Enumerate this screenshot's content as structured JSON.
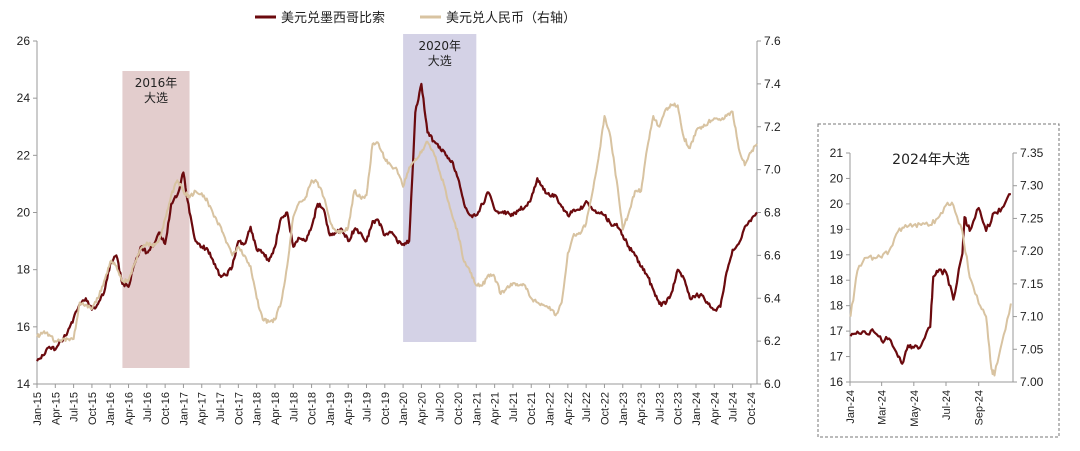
{
  "legend": [
    {
      "label": "美元兑墨西哥比索",
      "color": "#6b0a0e"
    },
    {
      "label": "美元兑人民币（右轴）",
      "color": "#d8c3a1"
    }
  ],
  "colors": {
    "mxn": "#6b0a0e",
    "cny": "#d8c3a1",
    "band_2016": "#dcc0c0",
    "band_2020": "#c9c7e0"
  },
  "chart_data": [
    {
      "type": "line",
      "xlim": [
        "2015-01",
        "2024-11"
      ],
      "y_left_lim": [
        14,
        26
      ],
      "y_left_ticks": [
        "14",
        "16",
        "18",
        "20",
        "22",
        "24",
        "26"
      ],
      "y_right_lim": [
        6.0,
        7.6
      ],
      "y_right_ticks": [
        "6.0",
        "6.2",
        "6.4",
        "6.6",
        "6.8",
        "7.0",
        "7.2",
        "7.4",
        "7.6"
      ],
      "x_ticks": [
        "Jan-15",
        "Apr-15",
        "Jul-15",
        "Oct-15",
        "Jan-16",
        "Apr-16",
        "Jul-16",
        "Oct-16",
        "Jan-17",
        "Apr-17",
        "Jul-17",
        "Oct-17",
        "Jan-18",
        "Apr-18",
        "Jul-18",
        "Oct-18",
        "Jan-19",
        "Apr-19",
        "Jul-19",
        "Oct-19",
        "Jan-20",
        "Apr-20",
        "Jul-20",
        "Oct-20",
        "Jan-21",
        "Apr-21",
        "Jul-21",
        "Oct-21",
        "Jan-22",
        "Apr-22",
        "Jul-22",
        "Oct-22",
        "Jan-23",
        "Apr-23",
        "Jul-23",
        "Oct-23",
        "Jan-24",
        "Apr-24",
        "Jul-24",
        "Oct-24"
      ],
      "annotations": [
        {
          "text": [
            "2016年",
            "大选"
          ],
          "start": "2016-03",
          "end": "2017-02"
        },
        {
          "text": [
            "2020年",
            "大选"
          ],
          "start": "2020-01",
          "end": "2021-01"
        }
      ],
      "series": [
        {
          "name": "美元兑墨西哥比索",
          "axis": "left",
          "x": [
            "2015-01",
            "2015-02",
            "2015-03",
            "2015-04",
            "2015-05",
            "2015-06",
            "2015-07",
            "2015-08",
            "2015-09",
            "2015-10",
            "2015-11",
            "2015-12",
            "2016-01",
            "2016-02",
            "2016-03",
            "2016-04",
            "2016-05",
            "2016-06",
            "2016-07",
            "2016-08",
            "2016-09",
            "2016-10",
            "2016-11",
            "2016-12",
            "2017-01",
            "2017-02",
            "2017-03",
            "2017-04",
            "2017-05",
            "2017-06",
            "2017-07",
            "2017-08",
            "2017-09",
            "2017-10",
            "2017-11",
            "2017-12",
            "2018-01",
            "2018-02",
            "2018-03",
            "2018-04",
            "2018-05",
            "2018-06",
            "2018-07",
            "2018-08",
            "2018-09",
            "2018-10",
            "2018-11",
            "2018-12",
            "2019-01",
            "2019-02",
            "2019-03",
            "2019-04",
            "2019-05",
            "2019-06",
            "2019-07",
            "2019-08",
            "2019-09",
            "2019-10",
            "2019-11",
            "2019-12",
            "2020-01",
            "2020-02",
            "2020-03",
            "2020-04",
            "2020-05",
            "2020-06",
            "2020-07",
            "2020-08",
            "2020-09",
            "2020-10",
            "2020-11",
            "2020-12",
            "2021-01",
            "2021-02",
            "2021-03",
            "2021-04",
            "2021-05",
            "2021-06",
            "2021-07",
            "2021-08",
            "2021-09",
            "2021-10",
            "2021-11",
            "2021-12",
            "2022-01",
            "2022-02",
            "2022-03",
            "2022-04",
            "2022-05",
            "2022-06",
            "2022-07",
            "2022-08",
            "2022-09",
            "2022-10",
            "2022-11",
            "2022-12",
            "2023-01",
            "2023-02",
            "2023-03",
            "2023-04",
            "2023-05",
            "2023-06",
            "2023-07",
            "2023-08",
            "2023-09",
            "2023-10",
            "2023-11",
            "2023-12",
            "2024-01",
            "2024-02",
            "2024-03",
            "2024-04",
            "2024-05",
            "2024-06",
            "2024-07",
            "2024-08",
            "2024-09",
            "2024-10",
            "2024-11"
          ],
          "y": [
            14.8,
            15.0,
            15.3,
            15.2,
            15.5,
            15.8,
            16.3,
            16.8,
            17.0,
            16.6,
            16.8,
            17.2,
            18.2,
            18.5,
            17.5,
            17.4,
            18.2,
            18.8,
            18.6,
            18.8,
            19.3,
            18.9,
            20.3,
            20.6,
            21.4,
            20.0,
            19.0,
            18.8,
            18.7,
            18.2,
            17.8,
            17.8,
            18.1,
            19.0,
            18.9,
            19.5,
            18.7,
            18.6,
            18.3,
            18.8,
            19.8,
            20.0,
            18.8,
            19.1,
            19.0,
            19.5,
            20.3,
            20.1,
            19.2,
            19.3,
            19.4,
            19.0,
            19.4,
            19.3,
            19.0,
            19.7,
            19.7,
            19.2,
            19.3,
            19.0,
            18.9,
            19.0,
            23.5,
            24.5,
            22.8,
            22.5,
            22.3,
            22.0,
            21.8,
            21.2,
            20.3,
            19.9,
            19.9,
            20.3,
            20.7,
            20.1,
            20.0,
            20.0,
            19.9,
            20.1,
            20.2,
            20.5,
            21.2,
            20.8,
            20.6,
            20.6,
            20.2,
            19.9,
            20.1,
            20.1,
            20.4,
            20.1,
            20.0,
            19.9,
            19.6,
            19.6,
            19.2,
            18.8,
            18.5,
            18.1,
            17.8,
            17.3,
            16.8,
            16.8,
            17.2,
            18.0,
            17.7,
            17.0,
            17.1,
            17.1,
            16.8,
            16.6,
            16.7,
            17.9,
            18.7,
            18.9,
            19.5,
            19.7,
            20.0
          ]
        },
        {
          "name": "美元兑人民币（右轴）",
          "axis": "right",
          "x": [
            "2015-01",
            "2015-02",
            "2015-03",
            "2015-04",
            "2015-05",
            "2015-06",
            "2015-07",
            "2015-08",
            "2015-09",
            "2015-10",
            "2015-11",
            "2015-12",
            "2016-01",
            "2016-02",
            "2016-03",
            "2016-04",
            "2016-05",
            "2016-06",
            "2016-07",
            "2016-08",
            "2016-09",
            "2016-10",
            "2016-11",
            "2016-12",
            "2017-01",
            "2017-02",
            "2017-03",
            "2017-04",
            "2017-05",
            "2017-06",
            "2017-07",
            "2017-08",
            "2017-09",
            "2017-10",
            "2017-11",
            "2017-12",
            "2018-01",
            "2018-02",
            "2018-03",
            "2018-04",
            "2018-05",
            "2018-06",
            "2018-07",
            "2018-08",
            "2018-09",
            "2018-10",
            "2018-11",
            "2018-12",
            "2019-01",
            "2019-02",
            "2019-03",
            "2019-04",
            "2019-05",
            "2019-06",
            "2019-07",
            "2019-08",
            "2019-09",
            "2019-10",
            "2019-11",
            "2019-12",
            "2020-01",
            "2020-02",
            "2020-03",
            "2020-04",
            "2020-05",
            "2020-06",
            "2020-07",
            "2020-08",
            "2020-09",
            "2020-10",
            "2020-11",
            "2020-12",
            "2021-01",
            "2021-02",
            "2021-03",
            "2021-04",
            "2021-05",
            "2021-06",
            "2021-07",
            "2021-08",
            "2021-09",
            "2021-10",
            "2021-11",
            "2021-12",
            "2022-01",
            "2022-02",
            "2022-03",
            "2022-04",
            "2022-05",
            "2022-06",
            "2022-07",
            "2022-08",
            "2022-09",
            "2022-10",
            "2022-11",
            "2022-12",
            "2023-01",
            "2023-02",
            "2023-03",
            "2023-04",
            "2023-05",
            "2023-06",
            "2023-07",
            "2023-08",
            "2023-09",
            "2023-10",
            "2023-11",
            "2023-12",
            "2024-01",
            "2024-02",
            "2024-03",
            "2024-04",
            "2024-05",
            "2024-06",
            "2024-07",
            "2024-08",
            "2024-09",
            "2024-10",
            "2024-11"
          ],
          "y": [
            6.22,
            6.24,
            6.23,
            6.2,
            6.2,
            6.21,
            6.21,
            6.38,
            6.37,
            6.35,
            6.4,
            6.48,
            6.57,
            6.55,
            6.48,
            6.48,
            6.56,
            6.63,
            6.66,
            6.64,
            6.67,
            6.77,
            6.88,
            6.95,
            6.9,
            6.87,
            6.9,
            6.89,
            6.85,
            6.78,
            6.74,
            6.66,
            6.6,
            6.64,
            6.6,
            6.55,
            6.4,
            6.3,
            6.29,
            6.3,
            6.38,
            6.55,
            6.78,
            6.85,
            6.87,
            6.95,
            6.94,
            6.87,
            6.76,
            6.71,
            6.71,
            6.73,
            6.9,
            6.87,
            6.88,
            7.12,
            7.12,
            7.05,
            7.02,
            7.0,
            6.92,
            7.01,
            7.05,
            7.08,
            7.13,
            7.08,
            6.99,
            6.9,
            6.79,
            6.7,
            6.57,
            6.52,
            6.46,
            6.46,
            6.51,
            6.5,
            6.42,
            6.45,
            6.47,
            6.46,
            6.46,
            6.4,
            6.38,
            6.37,
            6.36,
            6.32,
            6.38,
            6.61,
            6.7,
            6.7,
            6.75,
            6.89,
            7.05,
            7.25,
            7.15,
            6.95,
            6.72,
            6.8,
            6.9,
            6.9,
            7.1,
            7.25,
            7.2,
            7.28,
            7.3,
            7.3,
            7.15,
            7.1,
            7.18,
            7.2,
            7.22,
            7.24,
            7.23,
            7.25,
            7.27,
            7.1,
            7.02,
            7.08,
            7.12
          ]
        }
      ]
    },
    {
      "type": "line",
      "title": "2024年大选",
      "xlim": [
        "2024-01-01",
        "2024-11-05"
      ],
      "y_left_lim": [
        16,
        21
      ],
      "y_left_ticks": [
        "16",
        "17",
        "17",
        "18",
        "18",
        "19",
        "19",
        "20",
        "20",
        "21"
      ],
      "y_right_lim": [
        7.0,
        7.35
      ],
      "y_right_ticks": [
        "7.00",
        "7.05",
        "7.10",
        "7.15",
        "7.20",
        "7.25",
        "7.30",
        "7.35"
      ],
      "x_ticks": [
        "Jan-24",
        "Mar-24",
        "May-24",
        "Jul-24",
        "Sep-24"
      ],
      "series": [
        {
          "name": "美元兑墨西哥比索",
          "axis": "left",
          "x": [
            "2024-01-02",
            "2024-01-15",
            "2024-02-01",
            "2024-02-15",
            "2024-03-01",
            "2024-03-15",
            "2024-04-01",
            "2024-04-09",
            "2024-04-20",
            "2024-05-01",
            "2024-05-15",
            "2024-06-01",
            "2024-06-07",
            "2024-06-15",
            "2024-07-01",
            "2024-07-15",
            "2024-08-01",
            "2024-08-05",
            "2024-08-15",
            "2024-09-01",
            "2024-09-15",
            "2024-10-01",
            "2024-10-15",
            "2024-11-01"
          ],
          "y": [
            17.0,
            17.1,
            17.05,
            17.1,
            16.9,
            16.95,
            16.55,
            16.4,
            16.8,
            16.75,
            16.8,
            17.2,
            18.3,
            18.4,
            18.4,
            17.8,
            18.8,
            19.6,
            19.3,
            19.8,
            19.3,
            19.7,
            19.8,
            20.1
          ]
        },
        {
          "name": "美元兑人民币（右轴）",
          "axis": "right",
          "x": [
            "2024-01-02",
            "2024-01-15",
            "2024-02-01",
            "2024-02-15",
            "2024-03-01",
            "2024-03-15",
            "2024-04-01",
            "2024-04-15",
            "2024-05-01",
            "2024-05-15",
            "2024-06-01",
            "2024-06-15",
            "2024-07-01",
            "2024-07-15",
            "2024-08-01",
            "2024-08-15",
            "2024-09-01",
            "2024-09-15",
            "2024-09-25",
            "2024-10-01",
            "2024-10-15",
            "2024-11-01"
          ],
          "y": [
            7.1,
            7.17,
            7.19,
            7.19,
            7.19,
            7.2,
            7.23,
            7.24,
            7.24,
            7.24,
            7.24,
            7.25,
            7.27,
            7.27,
            7.23,
            7.16,
            7.12,
            7.1,
            7.02,
            7.01,
            7.06,
            7.12
          ]
        }
      ]
    }
  ]
}
